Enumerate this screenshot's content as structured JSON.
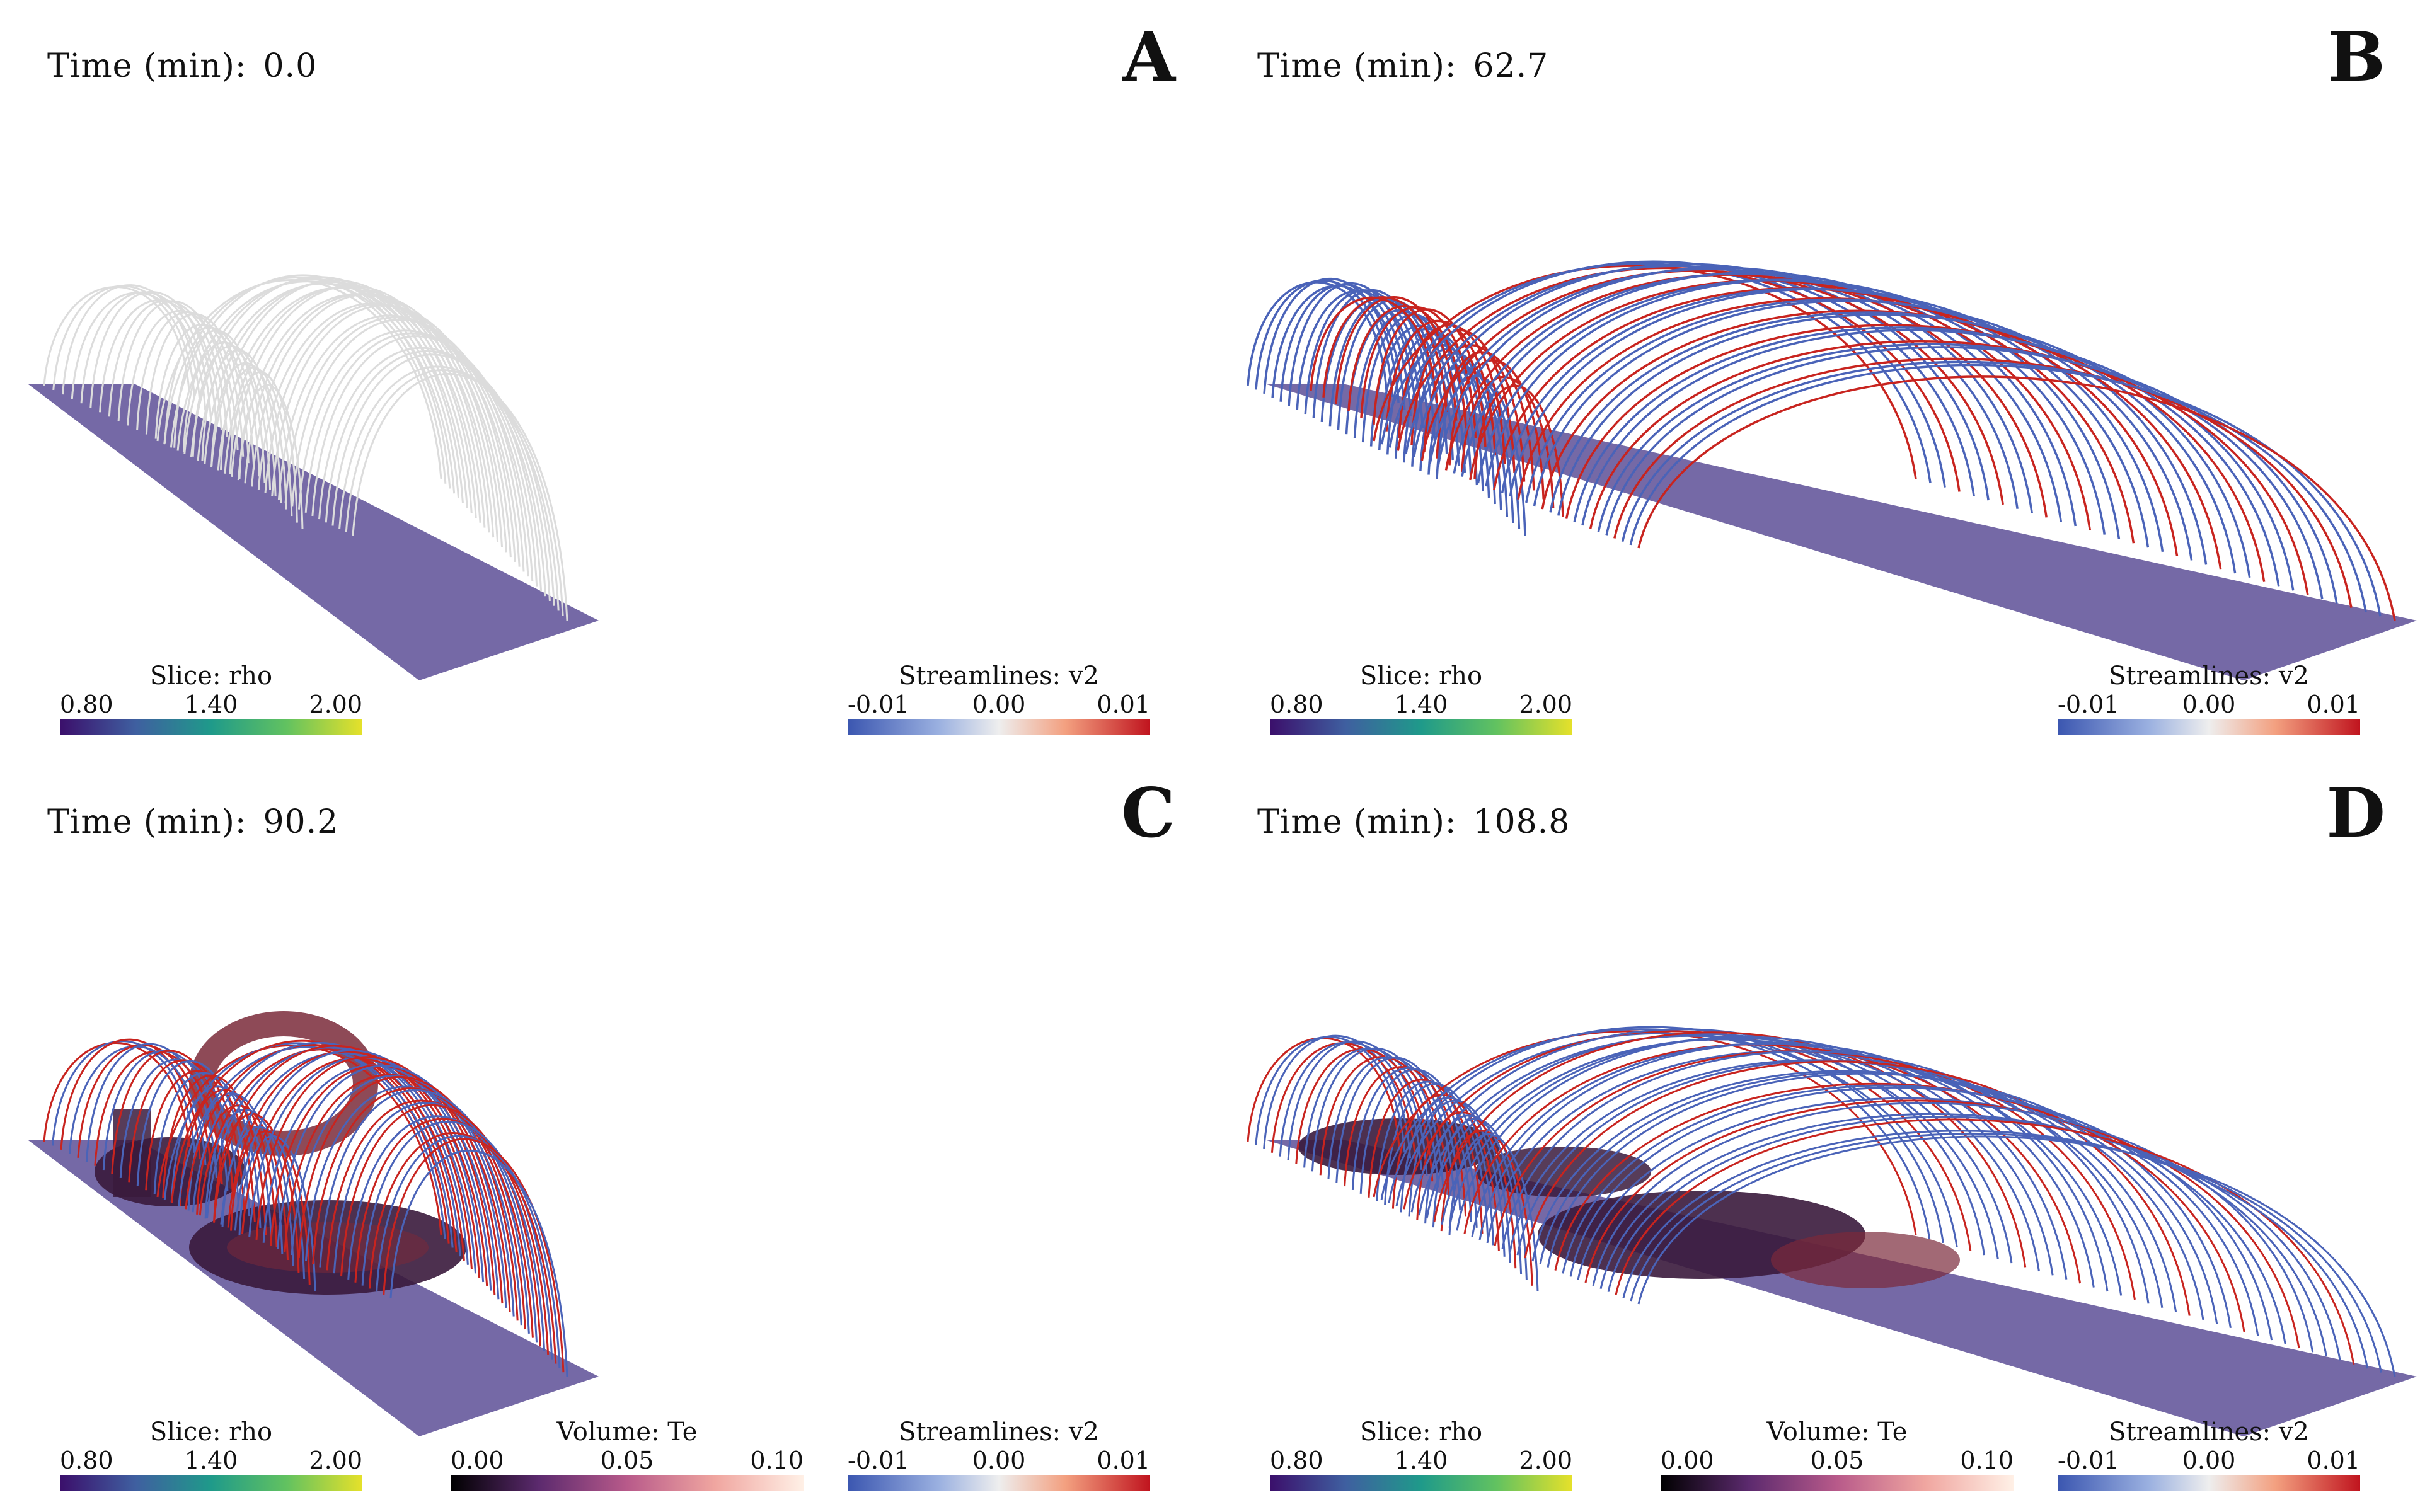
{
  "panels": [
    {
      "letter": "A",
      "time_label": "Time (min):",
      "time_value": "0.0"
    },
    {
      "letter": "B",
      "time_label": "Time (min):",
      "time_value": "62.7"
    },
    {
      "letter": "C",
      "time_label": "Time (min):",
      "time_value": "90.2"
    },
    {
      "letter": "D",
      "time_label": "Time (min):",
      "time_value": "108.8"
    }
  ],
  "colorbars": {
    "slice": {
      "title": "Slice: rho",
      "ticks": [
        "0.80",
        "1.40",
        "2.00"
      ]
    },
    "volume": {
      "title": "Volume: Te",
      "ticks": [
        "0.00",
        "0.05",
        "0.10"
      ]
    },
    "streamlines": {
      "title": "Streamlines: v2",
      "ticks": [
        "-0.01",
        "0.00",
        "0.01"
      ]
    }
  },
  "colors": {
    "slice_plane": "#7569a6",
    "field_line_neutral": "#dcdcdc",
    "field_line_red": "#c8241f",
    "field_line_blue": "#4a63b8",
    "blob_dark": "#3a1a3c",
    "blob_mid": "#7a2a3a",
    "slice_cmap": [
      "#3b0f6b",
      "#3f5fa0",
      "#1f9a8a",
      "#62c260",
      "#e6e12a"
    ],
    "volume_cmap": [
      "#000000",
      "#5c2a6e",
      "#b85a8a",
      "#f0a6a0",
      "#fff0e6"
    ],
    "stream_cmap": [
      "#3b56b0",
      "#9ab0e0",
      "#eeeeee",
      "#f3a080",
      "#c0141e"
    ]
  }
}
